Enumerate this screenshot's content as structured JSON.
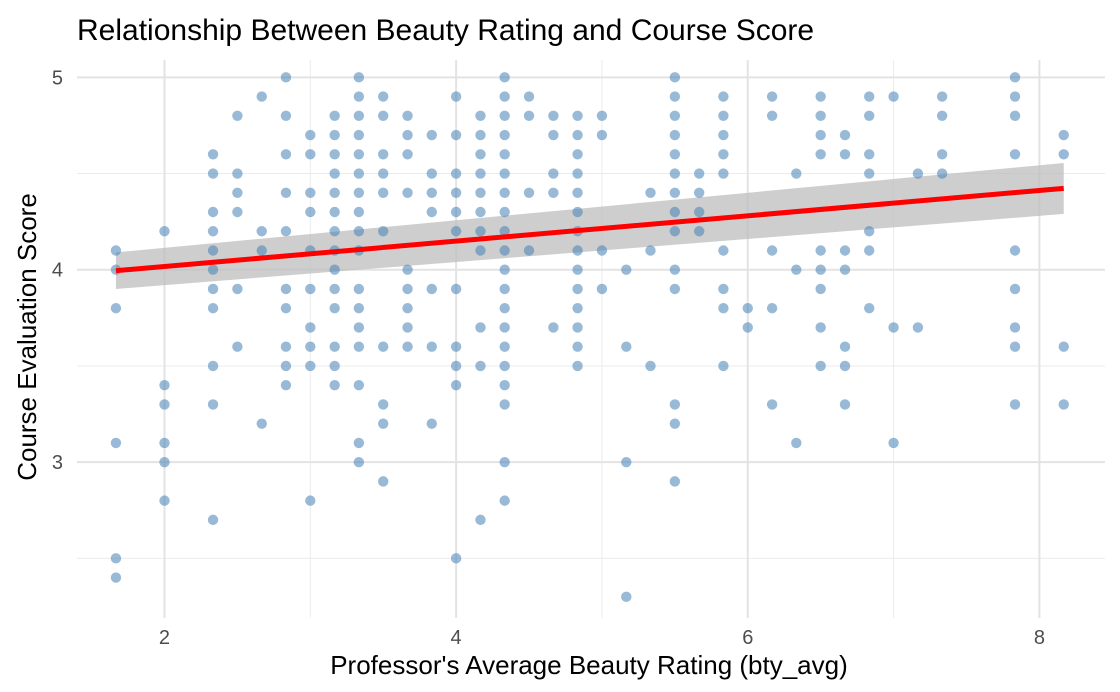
{
  "chart_data": {
    "type": "scatter",
    "title": "Relationship Between Beauty Rating and Course Score",
    "xlabel": "Professor's Average Beauty Rating (bty_avg)",
    "ylabel": "Course Evaluation Score",
    "xlim": [
      1.4,
      8.45
    ],
    "ylim": [
      2.19,
      5.09
    ],
    "x_ticks": [
      2,
      4,
      6,
      8
    ],
    "y_ticks": [
      3,
      4,
      5
    ],
    "x_minor": [
      3,
      5,
      7
    ],
    "y_minor": [
      2.5,
      3.5,
      4.5
    ],
    "grid": true,
    "point_color": "#4682b4",
    "fit_color": "#ff0000",
    "band_color": "#bebebe",
    "fit_line": {
      "x": [
        1.667,
        8.167
      ],
      "y": [
        3.995,
        4.423
      ]
    },
    "confidence_band": {
      "x": [
        1.667,
        8.167
      ],
      "upper": [
        4.09,
        4.555
      ],
      "lower": [
        3.9,
        4.29
      ]
    },
    "points": [
      [
        1.667,
        4.1
      ],
      [
        1.667,
        4.0
      ],
      [
        1.667,
        3.8
      ],
      [
        1.667,
        3.1
      ],
      [
        1.667,
        2.5
      ],
      [
        1.667,
        2.4
      ],
      [
        2.0,
        4.2
      ],
      [
        2.0,
        3.4
      ],
      [
        2.0,
        3.3
      ],
      [
        2.0,
        3.1
      ],
      [
        2.0,
        3.0
      ],
      [
        2.0,
        2.8
      ],
      [
        2.333,
        4.6
      ],
      [
        2.333,
        4.5
      ],
      [
        2.333,
        4.3
      ],
      [
        2.333,
        4.2
      ],
      [
        2.333,
        4.1
      ],
      [
        2.333,
        4.0
      ],
      [
        2.333,
        3.9
      ],
      [
        2.333,
        3.8
      ],
      [
        2.333,
        3.5
      ],
      [
        2.333,
        3.3
      ],
      [
        2.333,
        2.7
      ],
      [
        2.5,
        4.8
      ],
      [
        2.5,
        4.5
      ],
      [
        2.5,
        4.4
      ],
      [
        2.5,
        4.3
      ],
      [
        2.5,
        3.9
      ],
      [
        2.5,
        3.6
      ],
      [
        2.667,
        4.9
      ],
      [
        2.667,
        4.2
      ],
      [
        2.667,
        4.1
      ],
      [
        2.667,
        3.2
      ],
      [
        2.833,
        5.0
      ],
      [
        2.833,
        4.8
      ],
      [
        2.833,
        4.6
      ],
      [
        2.833,
        4.4
      ],
      [
        2.833,
        4.2
      ],
      [
        2.833,
        3.9
      ],
      [
        2.833,
        3.8
      ],
      [
        2.833,
        3.6
      ],
      [
        2.833,
        3.5
      ],
      [
        2.833,
        3.4
      ],
      [
        3.0,
        4.7
      ],
      [
        3.0,
        4.6
      ],
      [
        3.0,
        4.4
      ],
      [
        3.0,
        4.3
      ],
      [
        3.0,
        4.1
      ],
      [
        3.0,
        3.9
      ],
      [
        3.0,
        3.7
      ],
      [
        3.0,
        3.6
      ],
      [
        3.0,
        3.5
      ],
      [
        3.0,
        2.8
      ],
      [
        3.167,
        4.8
      ],
      [
        3.167,
        4.7
      ],
      [
        3.167,
        4.6
      ],
      [
        3.167,
        4.5
      ],
      [
        3.167,
        4.4
      ],
      [
        3.167,
        4.3
      ],
      [
        3.167,
        4.2
      ],
      [
        3.167,
        4.1
      ],
      [
        3.167,
        4.0
      ],
      [
        3.167,
        3.9
      ],
      [
        3.167,
        3.8
      ],
      [
        3.167,
        3.6
      ],
      [
        3.167,
        3.5
      ],
      [
        3.167,
        3.4
      ],
      [
        3.333,
        5.0
      ],
      [
        3.333,
        4.9
      ],
      [
        3.333,
        4.8
      ],
      [
        3.333,
        4.7
      ],
      [
        3.333,
        4.6
      ],
      [
        3.333,
        4.5
      ],
      [
        3.333,
        4.4
      ],
      [
        3.333,
        4.3
      ],
      [
        3.333,
        4.2
      ],
      [
        3.333,
        4.1
      ],
      [
        3.333,
        3.9
      ],
      [
        3.333,
        3.8
      ],
      [
        3.333,
        3.7
      ],
      [
        3.333,
        3.6
      ],
      [
        3.333,
        3.4
      ],
      [
        3.333,
        3.1
      ],
      [
        3.333,
        3.0
      ],
      [
        3.5,
        4.9
      ],
      [
        3.5,
        4.8
      ],
      [
        3.5,
        4.6
      ],
      [
        3.5,
        4.5
      ],
      [
        3.5,
        4.4
      ],
      [
        3.5,
        4.2
      ],
      [
        3.5,
        3.6
      ],
      [
        3.5,
        3.3
      ],
      [
        3.5,
        3.2
      ],
      [
        3.5,
        2.9
      ],
      [
        3.667,
        4.8
      ],
      [
        3.667,
        4.7
      ],
      [
        3.667,
        4.6
      ],
      [
        3.667,
        4.4
      ],
      [
        3.667,
        4.0
      ],
      [
        3.667,
        3.9
      ],
      [
        3.667,
        3.8
      ],
      [
        3.667,
        3.7
      ],
      [
        3.667,
        3.6
      ],
      [
        3.833,
        4.7
      ],
      [
        3.833,
        4.5
      ],
      [
        3.833,
        4.4
      ],
      [
        3.833,
        4.3
      ],
      [
        3.833,
        3.9
      ],
      [
        3.833,
        3.6
      ],
      [
        3.833,
        3.2
      ],
      [
        4.0,
        4.9
      ],
      [
        4.0,
        4.7
      ],
      [
        4.0,
        4.5
      ],
      [
        4.0,
        4.4
      ],
      [
        4.0,
        4.3
      ],
      [
        4.0,
        4.2
      ],
      [
        4.0,
        3.9
      ],
      [
        4.0,
        3.6
      ],
      [
        4.0,
        3.5
      ],
      [
        4.0,
        3.4
      ],
      [
        4.0,
        2.5
      ],
      [
        4.167,
        4.8
      ],
      [
        4.167,
        4.7
      ],
      [
        4.167,
        4.6
      ],
      [
        4.167,
        4.5
      ],
      [
        4.167,
        4.4
      ],
      [
        4.167,
        4.3
      ],
      [
        4.167,
        4.2
      ],
      [
        4.167,
        4.1
      ],
      [
        4.167,
        3.7
      ],
      [
        4.167,
        3.5
      ],
      [
        4.167,
        2.7
      ],
      [
        4.333,
        5.0
      ],
      [
        4.333,
        4.9
      ],
      [
        4.333,
        4.8
      ],
      [
        4.333,
        4.7
      ],
      [
        4.333,
        4.6
      ],
      [
        4.333,
        4.5
      ],
      [
        4.333,
        4.4
      ],
      [
        4.333,
        4.3
      ],
      [
        4.333,
        4.2
      ],
      [
        4.333,
        4.1
      ],
      [
        4.333,
        4.0
      ],
      [
        4.333,
        3.9
      ],
      [
        4.333,
        3.8
      ],
      [
        4.333,
        3.7
      ],
      [
        4.333,
        3.6
      ],
      [
        4.333,
        3.5
      ],
      [
        4.333,
        3.4
      ],
      [
        4.333,
        3.3
      ],
      [
        4.333,
        3.0
      ],
      [
        4.333,
        2.8
      ],
      [
        4.5,
        4.9
      ],
      [
        4.5,
        4.8
      ],
      [
        4.5,
        4.4
      ],
      [
        4.5,
        4.1
      ],
      [
        4.667,
        4.8
      ],
      [
        4.667,
        4.7
      ],
      [
        4.667,
        4.5
      ],
      [
        4.667,
        4.4
      ],
      [
        4.667,
        3.7
      ],
      [
        4.833,
        4.8
      ],
      [
        4.833,
        4.7
      ],
      [
        4.833,
        4.6
      ],
      [
        4.833,
        4.5
      ],
      [
        4.833,
        4.4
      ],
      [
        4.833,
        4.3
      ],
      [
        4.833,
        4.2
      ],
      [
        4.833,
        4.1
      ],
      [
        4.833,
        4.0
      ],
      [
        4.833,
        3.9
      ],
      [
        4.833,
        3.8
      ],
      [
        4.833,
        3.7
      ],
      [
        4.833,
        3.6
      ],
      [
        4.833,
        3.5
      ],
      [
        5.0,
        4.8
      ],
      [
        5.0,
        4.7
      ],
      [
        5.0,
        4.1
      ],
      [
        5.0,
        3.9
      ],
      [
        5.167,
        4.0
      ],
      [
        5.167,
        3.6
      ],
      [
        5.167,
        3.0
      ],
      [
        5.167,
        2.3
      ],
      [
        5.333,
        4.4
      ],
      [
        5.333,
        4.1
      ],
      [
        5.333,
        3.5
      ],
      [
        5.5,
        5.0
      ],
      [
        5.5,
        4.9
      ],
      [
        5.5,
        4.8
      ],
      [
        5.5,
        4.7
      ],
      [
        5.5,
        4.6
      ],
      [
        5.5,
        4.5
      ],
      [
        5.5,
        4.4
      ],
      [
        5.5,
        4.3
      ],
      [
        5.5,
        4.2
      ],
      [
        5.5,
        4.0
      ],
      [
        5.5,
        3.9
      ],
      [
        5.5,
        3.3
      ],
      [
        5.5,
        3.2
      ],
      [
        5.5,
        2.9
      ],
      [
        5.667,
        4.5
      ],
      [
        5.667,
        4.4
      ],
      [
        5.667,
        4.3
      ],
      [
        5.667,
        4.2
      ],
      [
        5.833,
        4.9
      ],
      [
        5.833,
        4.8
      ],
      [
        5.833,
        4.7
      ],
      [
        5.833,
        4.6
      ],
      [
        5.833,
        4.5
      ],
      [
        5.833,
        4.1
      ],
      [
        5.833,
        3.9
      ],
      [
        5.833,
        3.8
      ],
      [
        5.833,
        3.5
      ],
      [
        6.0,
        3.8
      ],
      [
        6.0,
        3.7
      ],
      [
        6.167,
        4.9
      ],
      [
        6.167,
        4.8
      ],
      [
        6.167,
        4.1
      ],
      [
        6.167,
        3.8
      ],
      [
        6.167,
        3.3
      ],
      [
        6.333,
        4.5
      ],
      [
        6.333,
        4.0
      ],
      [
        6.333,
        3.1
      ],
      [
        6.5,
        4.9
      ],
      [
        6.5,
        4.8
      ],
      [
        6.5,
        4.7
      ],
      [
        6.5,
        4.6
      ],
      [
        6.5,
        4.1
      ],
      [
        6.5,
        4.0
      ],
      [
        6.5,
        3.9
      ],
      [
        6.5,
        3.7
      ],
      [
        6.5,
        3.5
      ],
      [
        6.667,
        4.7
      ],
      [
        6.667,
        4.6
      ],
      [
        6.667,
        4.1
      ],
      [
        6.667,
        4.0
      ],
      [
        6.667,
        3.6
      ],
      [
        6.667,
        3.5
      ],
      [
        6.667,
        3.3
      ],
      [
        6.833,
        4.9
      ],
      [
        6.833,
        4.8
      ],
      [
        6.833,
        4.6
      ],
      [
        6.833,
        4.5
      ],
      [
        6.833,
        4.2
      ],
      [
        6.833,
        4.1
      ],
      [
        6.833,
        3.8
      ],
      [
        7.0,
        4.9
      ],
      [
        7.0,
        3.7
      ],
      [
        7.0,
        3.1
      ],
      [
        7.167,
        4.5
      ],
      [
        7.167,
        3.7
      ],
      [
        7.333,
        4.9
      ],
      [
        7.333,
        4.8
      ],
      [
        7.333,
        4.6
      ],
      [
        7.333,
        4.5
      ],
      [
        7.833,
        5.0
      ],
      [
        7.833,
        4.9
      ],
      [
        7.833,
        4.8
      ],
      [
        7.833,
        4.6
      ],
      [
        7.833,
        4.1
      ],
      [
        7.833,
        3.9
      ],
      [
        7.833,
        3.7
      ],
      [
        7.833,
        3.6
      ],
      [
        7.833,
        3.3
      ],
      [
        8.167,
        4.7
      ],
      [
        8.167,
        4.6
      ],
      [
        8.167,
        3.6
      ],
      [
        8.167,
        3.3
      ]
    ]
  }
}
